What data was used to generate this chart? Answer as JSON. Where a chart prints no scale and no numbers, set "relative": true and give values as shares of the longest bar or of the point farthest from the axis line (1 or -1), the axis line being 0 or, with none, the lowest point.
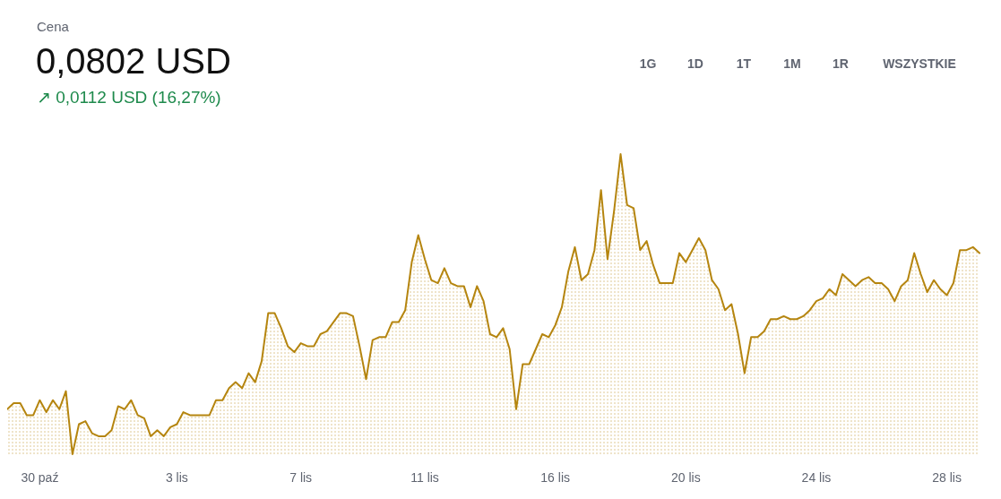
{
  "chart_data": {
    "type": "area",
    "title": "Cena",
    "subtitle": "0,0802 USD",
    "annotations": [
      "↗ 0,0112 USD (16,27%)",
      "1G",
      "1D",
      "1T",
      "1M",
      "1R",
      "WSZYSTKIE"
    ],
    "relative": true,
    "color": "#b5850f",
    "categories": [
      null,
      null,
      null,
      null,
      null,
      "30 paź",
      null,
      null,
      null,
      null,
      null,
      null,
      null,
      null,
      null,
      null,
      null,
      null,
      null,
      null,
      null,
      null,
      null,
      null,
      null,
      null,
      "3 lis",
      null,
      null,
      null,
      null,
      null,
      null,
      null,
      null,
      null,
      null,
      null,
      null,
      null,
      null,
      null,
      null,
      null,
      null,
      "7 lis",
      null,
      null,
      null,
      null,
      null,
      null,
      null,
      null,
      null,
      null,
      null,
      null,
      null,
      null,
      null,
      null,
      null,
      null,
      "11 lis",
      null,
      null,
      null,
      null,
      null,
      null,
      null,
      null,
      null,
      null,
      null,
      null,
      null,
      null,
      null,
      null,
      null,
      null,
      null,
      "16 lis",
      null,
      null,
      null,
      null,
      null,
      null,
      null,
      null,
      null,
      null,
      null,
      null,
      null,
      null,
      null,
      null,
      null,
      null,
      null,
      "20 lis",
      null,
      null,
      null,
      null,
      null,
      null,
      null,
      null,
      null,
      null,
      null,
      null,
      null,
      null,
      null,
      null,
      null,
      null,
      null,
      "24 lis",
      null,
      null,
      null,
      null,
      null,
      null,
      null,
      null,
      null,
      null,
      null,
      null,
      null,
      null,
      null,
      null,
      null,
      null,
      null,
      "28 lis",
      null,
      null,
      null,
      null,
      null
    ],
    "values": [
      0.15,
      0.17,
      0.17,
      0.13,
      0.13,
      0.18,
      0.14,
      0.18,
      0.15,
      0.21,
      0,
      0.1,
      0.11,
      0.07,
      0.06,
      0.06,
      0.08,
      0.16,
      0.15,
      0.18,
      0.13,
      0.12,
      0.06,
      0.08,
      0.06,
      0.09,
      0.1,
      0.14,
      0.13,
      0.13,
      0.13,
      0.13,
      0.18,
      0.18,
      0.22,
      0.24,
      0.22,
      0.27,
      0.24,
      0.31,
      0.47,
      0.47,
      0.42,
      0.36,
      0.34,
      0.37,
      0.36,
      0.36,
      0.4,
      0.41,
      0.44,
      0.47,
      0.47,
      0.46,
      0.36,
      0.25,
      0.38,
      0.39,
      0.39,
      0.44,
      0.44,
      0.48,
      0.64,
      0.73,
      0.65,
      0.58,
      0.57,
      0.62,
      0.57,
      0.56,
      0.56,
      0.49,
      0.56,
      0.51,
      0.4,
      0.39,
      0.42,
      0.35,
      0.15,
      0.3,
      0.3,
      0.35,
      0.4,
      0.39,
      0.43,
      0.49,
      0.61,
      0.69,
      0.58,
      0.6,
      0.68,
      0.88,
      0.65,
      0.81,
      1,
      0.83,
      0.82,
      0.68,
      0.71,
      0.63,
      0.57,
      0.57,
      0.57,
      0.67,
      0.64,
      0.68,
      0.72,
      0.68,
      0.58,
      0.55,
      0.48,
      0.5,
      0.4,
      0.27,
      0.39,
      0.39,
      0.41,
      0.45,
      0.45,
      0.46,
      0.45,
      0.45,
      0.46,
      0.48,
      0.51,
      0.52,
      0.55,
      0.53,
      0.6,
      0.58,
      0.56,
      0.58,
      0.59,
      0.57,
      0.57,
      0.55,
      0.51,
      0.56,
      0.58,
      0.67,
      0.6,
      0.54,
      0.58,
      0.55,
      0.53,
      0.57,
      0.68,
      0.68,
      0.69,
      0.67
    ]
  }
}
